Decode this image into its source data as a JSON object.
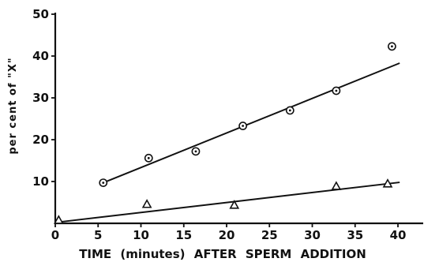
{
  "chart_data": {
    "type": "scatter",
    "xlabel": "TIME (minutes) AFTER SPERM ADDITION",
    "ylabel": "per cent of \"X\"",
    "xlim": [
      0,
      40
    ],
    "ylim": [
      0,
      50
    ],
    "x_ticks": [
      "0",
      "5",
      "10",
      "15",
      "20",
      "25",
      "30",
      "35",
      "40"
    ],
    "y_ticks": [
      "10",
      "20",
      "30",
      "40",
      "50"
    ],
    "grid": false,
    "series": [
      {
        "marker": "circle-dot",
        "points": [
          {
            "x": 5.6,
            "y": 9.7
          },
          {
            "x": 10.9,
            "y": 15.6
          },
          {
            "x": 16.4,
            "y": 17.2
          },
          {
            "x": 21.9,
            "y": 23.3
          },
          {
            "x": 27.4,
            "y": 27.0
          },
          {
            "x": 32.8,
            "y": 31.7
          },
          {
            "x": 39.3,
            "y": 42.3
          }
        ],
        "fit_line": [
          {
            "x": 5.6,
            "y": 9.7
          },
          {
            "x": 40.2,
            "y": 38.3
          }
        ]
      },
      {
        "marker": "triangle",
        "points": [
          {
            "x": 0.4,
            "y": 0.7
          },
          {
            "x": 10.7,
            "y": 4.5
          },
          {
            "x": 20.9,
            "y": 4.3
          },
          {
            "x": 32.8,
            "y": 8.8
          },
          {
            "x": 38.8,
            "y": 9.4
          }
        ],
        "fit_line": [
          {
            "x": 0.0,
            "y": 0.2
          },
          {
            "x": 40.2,
            "y": 9.8
          }
        ]
      }
    ]
  }
}
